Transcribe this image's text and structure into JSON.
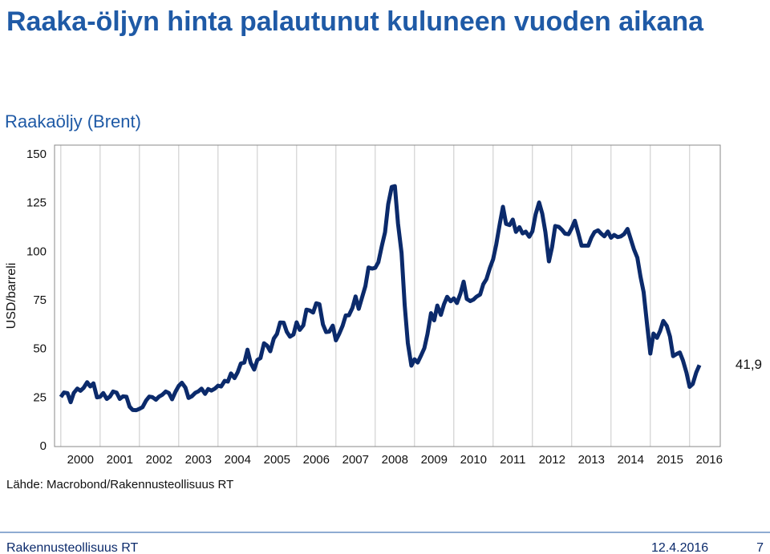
{
  "title": "Raaka-öljyn hinta palautunut kuluneen vuoden aikana",
  "footer": {
    "left": "Rakennusteollisuus RT",
    "date": "12.4.2016",
    "page": "7"
  },
  "chart_data": {
    "type": "line",
    "title": "Raakaöljy (Brent)",
    "y_label": "USD/barreli",
    "source": "Lähde: Macrobond/Rakennusteollisuus RT",
    "color": "#0b2a6b",
    "grid": "vertical",
    "xlim": [
      1999.84,
      2016.78
    ],
    "xticks": [
      2000,
      2001,
      2002,
      2003,
      2004,
      2005,
      2006,
      2007,
      2008,
      2009,
      2010,
      2011,
      2012,
      2013,
      2014,
      2015,
      2016
    ],
    "ylim": [
      0,
      155
    ],
    "yticks": [
      0,
      25,
      50,
      75,
      100,
      125,
      150
    ],
    "annotation": {
      "value": 41.9,
      "label": "41,9"
    },
    "x": [
      2000,
      2000.08,
      2000.17,
      2000.25,
      2000.33,
      2000.42,
      2000.5,
      2000.58,
      2000.67,
      2000.75,
      2000.83,
      2000.92,
      2001,
      2001.08,
      2001.17,
      2001.25,
      2001.33,
      2001.42,
      2001.5,
      2001.58,
      2001.67,
      2001.75,
      2001.83,
      2001.92,
      2002,
      2002.08,
      2002.17,
      2002.25,
      2002.33,
      2002.42,
      2002.5,
      2002.58,
      2002.67,
      2002.75,
      2002.83,
      2002.92,
      2003,
      2003.08,
      2003.17,
      2003.25,
      2003.33,
      2003.42,
      2003.5,
      2003.58,
      2003.67,
      2003.75,
      2003.83,
      2003.92,
      2004,
      2004.08,
      2004.17,
      2004.25,
      2004.33,
      2004.42,
      2004.5,
      2004.58,
      2004.67,
      2004.75,
      2004.83,
      2004.92,
      2005,
      2005.08,
      2005.17,
      2005.25,
      2005.33,
      2005.42,
      2005.5,
      2005.58,
      2005.67,
      2005.75,
      2005.83,
      2005.92,
      2006,
      2006.08,
      2006.17,
      2006.25,
      2006.33,
      2006.42,
      2006.5,
      2006.58,
      2006.67,
      2006.75,
      2006.83,
      2006.92,
      2007,
      2007.08,
      2007.17,
      2007.25,
      2007.33,
      2007.42,
      2007.5,
      2007.58,
      2007.67,
      2007.75,
      2007.83,
      2007.92,
      2008,
      2008.08,
      2008.17,
      2008.25,
      2008.33,
      2008.42,
      2008.5,
      2008.58,
      2008.67,
      2008.75,
      2008.83,
      2008.92,
      2009,
      2009.08,
      2009.17,
      2009.25,
      2009.33,
      2009.42,
      2009.5,
      2009.58,
      2009.67,
      2009.75,
      2009.83,
      2009.92,
      2010,
      2010.08,
      2010.17,
      2010.25,
      2010.33,
      2010.42,
      2010.5,
      2010.58,
      2010.67,
      2010.75,
      2010.83,
      2010.92,
      2011,
      2011.08,
      2011.17,
      2011.25,
      2011.33,
      2011.42,
      2011.5,
      2011.58,
      2011.67,
      2011.75,
      2011.83,
      2011.92,
      2012,
      2012.08,
      2012.17,
      2012.25,
      2012.33,
      2012.42,
      2012.5,
      2012.58,
      2012.67,
      2012.75,
      2012.83,
      2012.92,
      2013,
      2013.08,
      2013.17,
      2013.25,
      2013.33,
      2013.42,
      2013.5,
      2013.58,
      2013.67,
      2013.75,
      2013.83,
      2013.92,
      2014,
      2014.08,
      2014.17,
      2014.25,
      2014.33,
      2014.42,
      2014.5,
      2014.58,
      2014.67,
      2014.75,
      2014.83,
      2014.92,
      2015,
      2015.08,
      2015.17,
      2015.25,
      2015.33,
      2015.42,
      2015.5,
      2015.58,
      2015.67,
      2015.75,
      2015.83,
      2015.92,
      2016,
      2016.08,
      2016.17,
      2016.25
    ],
    "values": [
      25.5,
      27.8,
      27.5,
      22.8,
      27.6,
      29.8,
      28.7,
      30.2,
      33.1,
      30.9,
      32.5,
      25.3,
      25.6,
      27.5,
      24.5,
      25.7,
      28.3,
      27.7,
      24.5,
      25.8,
      25.6,
      20.5,
      18.8,
      18.7,
      19.4,
      20.3,
      23.7,
      25.7,
      25.4,
      24.1,
      25.7,
      26.6,
      28.3,
      27.5,
      24.3,
      28.3,
      31.2,
      32.8,
      30.3,
      25.0,
      25.8,
      27.6,
      28.4,
      29.8,
      27.1,
      29.6,
      28.8,
      29.8,
      31.3,
      30.9,
      33.8,
      33.4,
      37.6,
      35.2,
      38.2,
      42.7,
      43.2,
      49.8,
      43.1,
      39.6,
      44.5,
      45.5,
      53.1,
      51.9,
      49.0,
      55.6,
      57.9,
      63.8,
      63.7,
      59.0,
      56.5,
      57.6,
      63.9,
      60.0,
      62.3,
      70.4,
      70.0,
      68.9,
      73.7,
      73.2,
      62.8,
      58.9,
      59.1,
      62.2,
      54.6,
      57.8,
      62.1,
      67.4,
      67.5,
      71.3,
      77.2,
      70.8,
      77.0,
      82.5,
      92.1,
      91.5,
      91.9,
      94.8,
      103.3,
      110.2,
      124.6,
      133.5,
      133.9,
      114.6,
      99.6,
      72.7,
      53.2,
      41.6,
      44.9,
      43.2,
      47.0,
      50.6,
      57.9,
      68.6,
      64.9,
      72.5,
      67.7,
      73.2,
      77.0,
      74.7,
      76.2,
      73.8,
      78.8,
      84.8,
      75.9,
      74.8,
      75.6,
      77.1,
      78.2,
      83.5,
      86.1,
      92.0,
      96.3,
      104.0,
      114.6,
      123.3,
      114.5,
      113.9,
      116.7,
      110.4,
      112.8,
      109.6,
      110.5,
      107.9,
      110.7,
      119.3,
      125.5,
      119.8,
      110.3,
      95.2,
      102.6,
      113.4,
      113.0,
      111.5,
      109.5,
      109.2,
      112.3,
      116.1,
      109.5,
      103.3,
      103.3,
      103.3,
      107.4,
      110.3,
      111.2,
      109.5,
      108.1,
      110.6,
      107.4,
      108.8,
      107.7,
      108.1,
      109.2,
      111.9,
      106.8,
      101.6,
      97.1,
      87.4,
      79.4,
      62.3,
      47.8,
      58.1,
      55.9,
      59.5,
      64.6,
      62.0,
      56.6,
      46.5,
      47.6,
      48.4,
      44.3,
      38.0,
      30.7,
      32.2,
      38.2,
      41.9
    ]
  }
}
